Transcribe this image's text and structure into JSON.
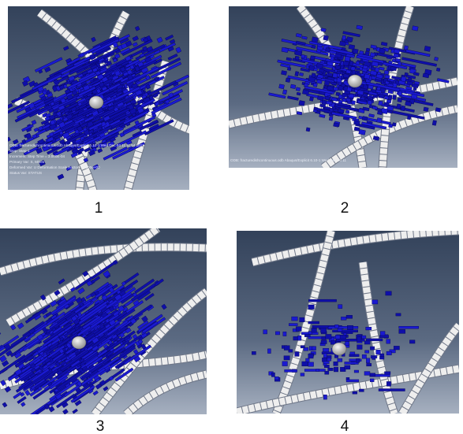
{
  "panels": [
    {
      "label": "1",
      "caption": [
        "ODB: fracturedishcontinuous.odb    Abaqus/Explicit 6.10-1    Wed Dec 04 11:11:54 2013",
        "Step: Step-1",
        "Increment: Step Time = 3.000E-04",
        "Primary Var: S, Mises",
        "Deformed Var: U   Deformation Scale Factor: +1.000e+00",
        "Status Var: STATUS"
      ]
    },
    {
      "label": "2",
      "caption": [
        "ODB: fracturedishcontinuous.odb      Abaqus/Explicit 6.10-1      Wed Dec 04 11"
      ]
    },
    {
      "label": "3"
    },
    {
      "label": "4"
    }
  ]
}
